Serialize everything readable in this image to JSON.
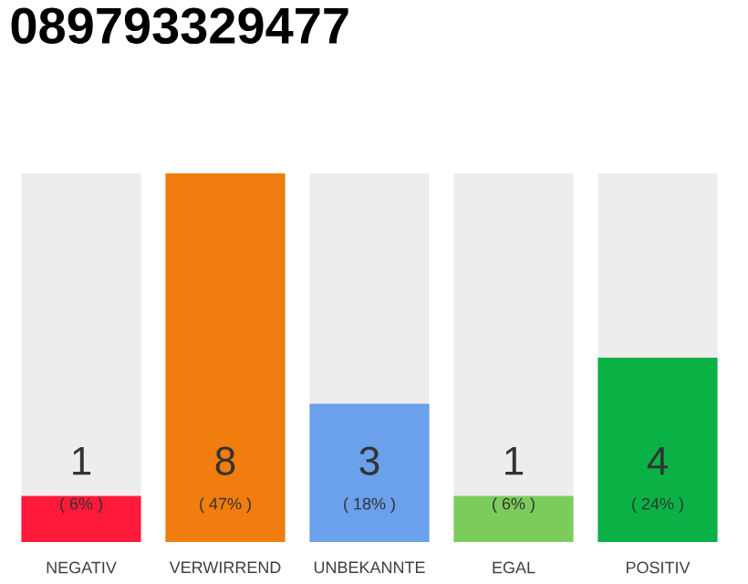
{
  "chart_data": {
    "type": "bar",
    "title": "089793329477",
    "categories": [
      "NEGATIV",
      "VERWIRREND",
      "UNBEKANNTE",
      "EGAL",
      "POSITIV"
    ],
    "values": [
      1,
      8,
      3,
      1,
      4
    ],
    "colors": [
      "#ff1a3c",
      "#f07d0d",
      "#6aa0ec",
      "#7ccc5c",
      "#0ab246"
    ],
    "data_labels": true,
    "annotations": [
      "( 6% )",
      "( 47% )",
      "( 18% )",
      "( 6% )",
      "( 24% )"
    ]
  }
}
